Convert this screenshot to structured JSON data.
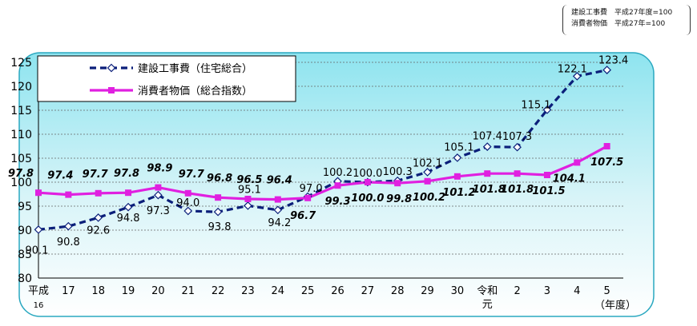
{
  "note": {
    "line1": "建設工事費　平成27年度=100",
    "line2": "消費者物価　平成27年=100"
  },
  "chart_data": {
    "type": "line",
    "ylim": [
      80,
      125
    ],
    "yticks": [
      80,
      85,
      90,
      95,
      100,
      105,
      110,
      115,
      120,
      125
    ],
    "categories": [
      "平成16",
      "17",
      "18",
      "19",
      "20",
      "21",
      "22",
      "23",
      "24",
      "25",
      "26",
      "27",
      "28",
      "29",
      "30",
      "令和元",
      "2",
      "3",
      "4",
      "5"
    ],
    "category_labels": [
      [
        "平成",
        "16"
      ],
      [
        "17"
      ],
      [
        "18"
      ],
      [
        "19"
      ],
      [
        "20"
      ],
      [
        "21"
      ],
      [
        "22"
      ],
      [
        "23"
      ],
      [
        "24"
      ],
      [
        "25"
      ],
      [
        "26"
      ],
      [
        "27"
      ],
      [
        "28"
      ],
      [
        "29"
      ],
      [
        "30"
      ],
      [
        "令和",
        "元"
      ],
      [
        "2"
      ],
      [
        "3"
      ],
      [
        "4"
      ],
      [
        "5"
      ]
    ],
    "xlabel": "（年度）",
    "series": [
      {
        "name": "建設工事費（住宅総合）",
        "color": "#0b1f7a",
        "style": "dashed",
        "marker": "diamond",
        "values": [
          90.1,
          90.8,
          92.6,
          94.8,
          97.3,
          94.0,
          93.8,
          95.1,
          94.2,
          97.0,
          100.2,
          100.0,
          100.3,
          102.1,
          105.1,
          107.4,
          107.3,
          115.1,
          122.1,
          123.4
        ],
        "labels": [
          "90.1",
          "90.8",
          "92.6",
          "94.8",
          "97.3",
          "94.0",
          "93.8",
          "95.1",
          "94.2",
          "97.0",
          "100.2",
          "100.0",
          "100.3",
          "102.1",
          "105.1",
          "107.4",
          "107.3",
          "115.1",
          "122.1",
          "123.4"
        ]
      },
      {
        "name": "消費者物価（総合指数）",
        "color": "#e020e0",
        "style": "solid",
        "marker": "square",
        "values": [
          97.8,
          97.4,
          97.7,
          97.8,
          98.9,
          97.7,
          96.8,
          96.5,
          96.4,
          96.7,
          99.3,
          100.0,
          99.8,
          100.2,
          101.2,
          101.8,
          101.8,
          101.5,
          104.1,
          107.5
        ],
        "labels": [
          "97.8",
          "97.4",
          "97.7",
          "97.8",
          "98.9",
          "97.7",
          "96.8",
          "96.5",
          "96.4",
          "96.7",
          "99.3",
          "100.0",
          "99.8",
          "100.2",
          "101.2",
          "101.8",
          "101.8",
          "101.5",
          "104.1",
          "107.5"
        ]
      }
    ],
    "grid": true,
    "legend_position": "top-left"
  }
}
